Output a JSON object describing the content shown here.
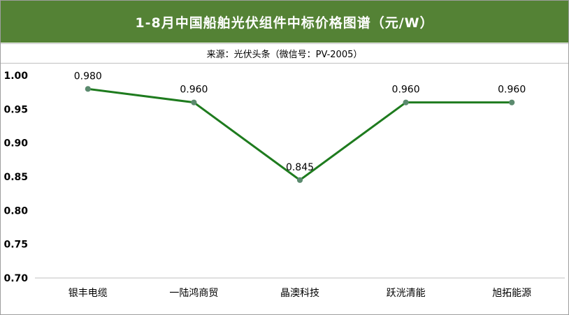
{
  "header": {
    "title": "1-8月中国船舶光伏组件中标价格图谱（元/W）",
    "source": "来源：光伏头条（微信号：PV-2005）"
  },
  "colors": {
    "title_background": "#548235",
    "line": "#1e7b1e",
    "marker": "#5b8a6e"
  },
  "chart_data": {
    "type": "line",
    "categories": [
      "银丰电缆",
      "一陆鸿商贸",
      "晶澳科技",
      "跃洸清能",
      "旭拓能源"
    ],
    "series": [
      {
        "values": [
          0.98,
          0.96,
          0.845,
          0.96,
          0.96
        ]
      }
    ],
    "data_labels": [
      "0.980",
      "0.960",
      "0.845",
      "0.960",
      "0.960"
    ],
    "y_ticks": [
      "0.70",
      "0.75",
      "0.80",
      "0.85",
      "0.90",
      "0.95",
      "1.00"
    ],
    "ylim": [
      0.7,
      1.0
    ],
    "title": "1-8月中国船舶光伏组件中标价格图谱（元/W）",
    "xlabel": "",
    "ylabel": "",
    "grid": false,
    "legend": "none"
  }
}
